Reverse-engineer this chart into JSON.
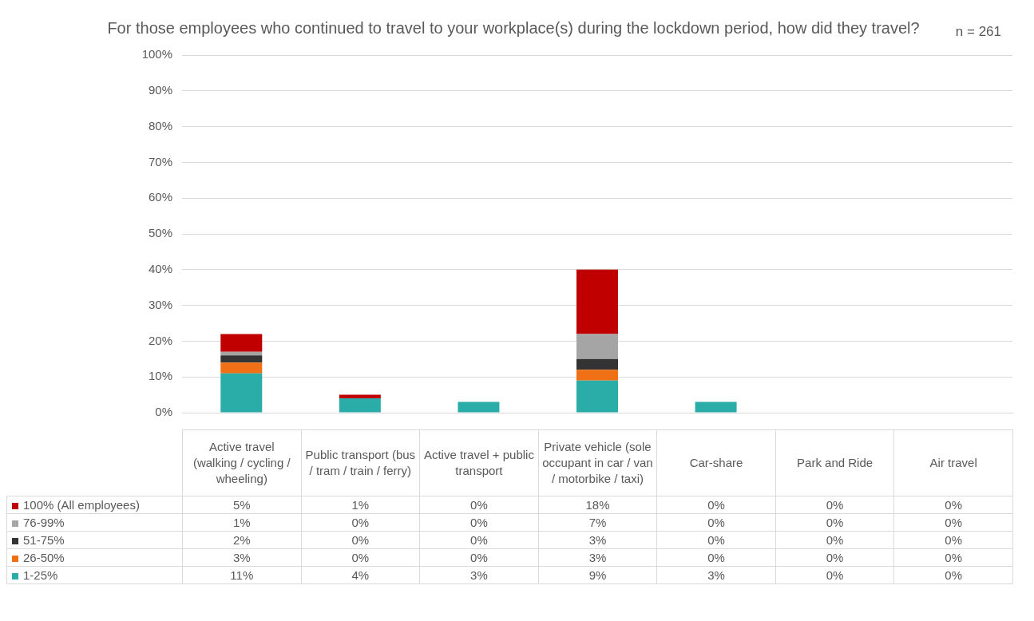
{
  "chart_data": {
    "type": "bar",
    "title": "For those employees who continued to travel to your workplace(s) during the lockdown period, how did they travel?",
    "annotations": [
      "n = 261"
    ],
    "categories": [
      "Active travel (walking / cycling / wheeling)",
      "Public transport (bus / tram / train / ferry)",
      "Active travel + public transport",
      "Private vehicle (sole occupant in car / van / motorbike / taxi)",
      "Car-share",
      "Park and Ride",
      "Air travel"
    ],
    "stacked": true,
    "legend": "bottom",
    "grid": "y",
    "ylim": [
      0,
      100
    ],
    "yticks": [
      {
        "value": 0,
        "label": "0%"
      },
      {
        "value": 10,
        "label": "10%"
      },
      {
        "value": 20,
        "label": "20%"
      },
      {
        "value": 30,
        "label": "30%"
      },
      {
        "value": 40,
        "label": "40%"
      },
      {
        "value": 50,
        "label": "50%"
      },
      {
        "value": 60,
        "label": "60%"
      },
      {
        "value": 70,
        "label": "70%"
      },
      {
        "value": 80,
        "label": "80%"
      },
      {
        "value": 90,
        "label": "90%"
      },
      {
        "value": 100,
        "label": "100%"
      }
    ],
    "series": [
      {
        "name": "1-25%",
        "color": "#2aaca8",
        "values": [
          11,
          4,
          3,
          9,
          3,
          0,
          0
        ],
        "value_labels": [
          "11%",
          "4%",
          "3%",
          "9%",
          "3%",
          "0%",
          "0%"
        ]
      },
      {
        "name": "26-50%",
        "color": "#f07016",
        "values": [
          3,
          0,
          0,
          3,
          0,
          0,
          0
        ],
        "value_labels": [
          "3%",
          "0%",
          "0%",
          "3%",
          "0%",
          "0%",
          "0%"
        ]
      },
      {
        "name": "51-75%",
        "color": "#333333",
        "values": [
          2,
          0,
          0,
          3,
          0,
          0,
          0
        ],
        "value_labels": [
          "2%",
          "0%",
          "0%",
          "3%",
          "0%",
          "0%",
          "0%"
        ]
      },
      {
        "name": "76-99%",
        "color": "#a5a5a5",
        "values": [
          1,
          0,
          0,
          7,
          0,
          0,
          0
        ],
        "value_labels": [
          "1%",
          "0%",
          "0%",
          "7%",
          "0%",
          "0%",
          "0%"
        ]
      },
      {
        "name": "100% (All employees)",
        "color": "#c00000",
        "values": [
          5,
          1,
          0,
          18,
          0,
          0,
          0
        ],
        "value_labels": [
          "5%",
          "1%",
          "0%",
          "18%",
          "0%",
          "0%",
          "0%"
        ]
      }
    ]
  }
}
